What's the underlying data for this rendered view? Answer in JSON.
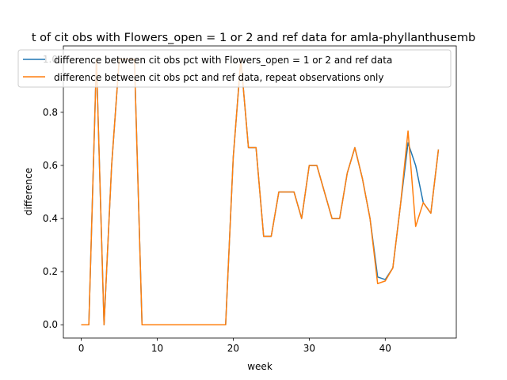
{
  "chart_data": {
    "type": "line",
    "title": "t of cit obs with Flowers_open = 1 or 2 and ref data for amla-phyllanthusemb",
    "xlabel": "week",
    "ylabel": "difference",
    "xlim": [
      -2.35,
      49.35
    ],
    "ylim": [
      -0.05,
      1.05
    ],
    "xticks": [
      0,
      10,
      20,
      30,
      40
    ],
    "xtick_labels": [
      "0",
      "10",
      "20",
      "30",
      "40"
    ],
    "yticks": [
      0.0,
      0.2,
      0.4,
      0.6,
      0.8,
      1.0
    ],
    "ytick_labels": [
      "0.0",
      "0.2",
      "0.4",
      "0.6",
      "0.8",
      "1.0"
    ],
    "grid": false,
    "legend_position": "top-center",
    "x": [
      0,
      1,
      2,
      3,
      4,
      5,
      6,
      7,
      8,
      9,
      10,
      11,
      12,
      13,
      14,
      15,
      16,
      17,
      18,
      19,
      20,
      21,
      22,
      23,
      24,
      25,
      26,
      27,
      28,
      29,
      30,
      31,
      32,
      33,
      34,
      35,
      36,
      37,
      38,
      39,
      40,
      41,
      42,
      43,
      44,
      45,
      46,
      47
    ],
    "series": [
      {
        "name": "difference between cit obs pct with Flowers_open = 1 or 2 and ref data",
        "color": "#1f77b4",
        "values": [
          0,
          0,
          1,
          0,
          0.6,
          1,
          1,
          1,
          0,
          0,
          0,
          0,
          0,
          0,
          0,
          0,
          0,
          0,
          0,
          0,
          0.63,
          1,
          0.667,
          0.667,
          0.333,
          0.333,
          0.5,
          0.5,
          0.5,
          0.4,
          0.6,
          0.6,
          0.5,
          0.4,
          0.4,
          0.571,
          0.667,
          0.55,
          0.4,
          0.18,
          0.17,
          0.214,
          0.45,
          0.685,
          0.6,
          0.46,
          0.42,
          0.66
        ]
      },
      {
        "name": "difference between cit obs pct and ref data, repeat observations only",
        "color": "#ff7f0e",
        "values": [
          0,
          0,
          1,
          0,
          0.6,
          1,
          1,
          1,
          0,
          0,
          0,
          0,
          0,
          0,
          0,
          0,
          0,
          0,
          0,
          0,
          0.63,
          1,
          0.667,
          0.667,
          0.333,
          0.333,
          0.5,
          0.5,
          0.5,
          0.4,
          0.6,
          0.6,
          0.5,
          0.4,
          0.4,
          0.571,
          0.667,
          0.55,
          0.4,
          0.155,
          0.165,
          0.214,
          0.45,
          0.73,
          0.37,
          0.46,
          0.42,
          0.66
        ]
      }
    ]
  }
}
